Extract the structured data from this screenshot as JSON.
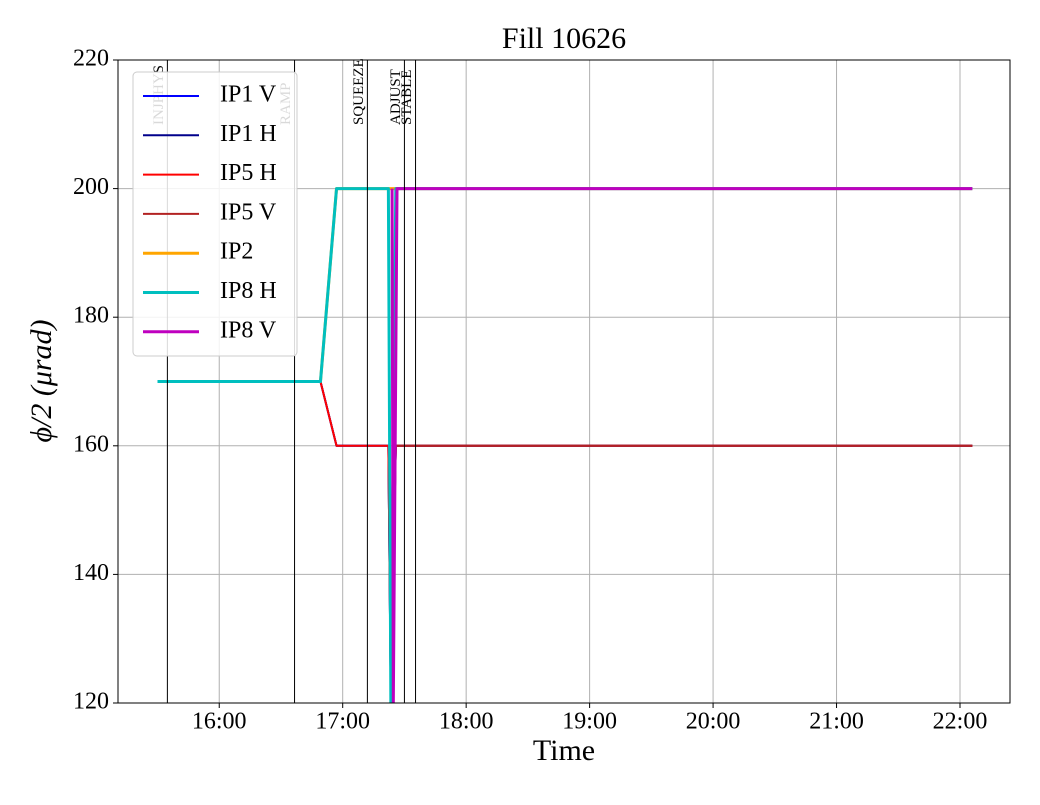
{
  "chart_data": {
    "type": "line",
    "title": "Fill 10626",
    "xlabel": "Time",
    "ylabel": "ϕ/2 (μrad)",
    "xlim": [
      15.18,
      22.405
    ],
    "xticks": [
      {
        "value": 16,
        "label": "16:00"
      },
      {
        "value": 17,
        "label": "17:00"
      },
      {
        "value": 18,
        "label": "18:00"
      },
      {
        "value": 19,
        "label": "19:00"
      },
      {
        "value": 20,
        "label": "20:00"
      },
      {
        "value": 21,
        "label": "21:00"
      },
      {
        "value": 22,
        "label": "22:00"
      }
    ],
    "ylim": [
      120,
      220
    ],
    "yticks": [
      120,
      140,
      160,
      180,
      200,
      220
    ],
    "grid": true,
    "legend": "upper left",
    "events": [
      {
        "label": "INJPHYS",
        "x": 15.58,
        "color": "#bbbbbb"
      },
      {
        "label": "RAMP",
        "x": 16.61,
        "color": "#bbbbbb"
      },
      {
        "label": "SQUEEZE",
        "x": 17.2,
        "color": "#000000"
      },
      {
        "label": "ADJUST",
        "x": 17.5,
        "color": "#000000"
      },
      {
        "label": "STABLE",
        "x": 17.59,
        "color": "#000000"
      }
    ],
    "series": [
      {
        "name": "IP1 V",
        "color": "#0000ff",
        "linewidth": 2,
        "x": [
          15.5,
          16.82,
          16.95,
          17.37,
          17.39,
          17.43,
          22.1
        ],
        "values": [
          170,
          170,
          160,
          160,
          120,
          160,
          160
        ]
      },
      {
        "name": "IP1 H",
        "color": "#00008b",
        "linewidth": 2,
        "x": [
          15.5,
          16.82,
          16.95,
          17.37,
          17.39,
          17.43,
          22.1
        ],
        "values": [
          170,
          170,
          160,
          160,
          120,
          160,
          160
        ]
      },
      {
        "name": "IP5 H",
        "color": "#ff0000",
        "linewidth": 2,
        "x": [
          15.5,
          16.82,
          16.95,
          17.37,
          17.39,
          17.43,
          22.1
        ],
        "values": [
          170,
          170,
          160,
          160,
          120,
          160,
          160
        ]
      },
      {
        "name": "IP5 V",
        "color": "#b22222",
        "linewidth": 2,
        "x": [
          17.39,
          17.43,
          22.1
        ],
        "values": [
          120,
          160,
          160
        ]
      },
      {
        "name": "IP2",
        "color": "#ffa500",
        "linewidth": 3,
        "x": [
          15.5,
          16.82,
          16.95,
          17.42,
          22.1
        ],
        "values": [
          170,
          170,
          200,
          200,
          200
        ]
      },
      {
        "name": "IP8 H",
        "color": "#00bfbf",
        "linewidth": 3,
        "x": [
          15.5,
          16.82,
          16.95,
          17.37,
          17.39,
          17.43,
          22.1
        ],
        "values": [
          170,
          170,
          200,
          200,
          120,
          200,
          200
        ]
      },
      {
        "name": "IP8 V",
        "color": "#bf00bf",
        "linewidth": 3,
        "x": [
          17.4,
          17.41,
          17.44,
          22.1
        ],
        "values": [
          200,
          120,
          200,
          200
        ]
      }
    ]
  }
}
